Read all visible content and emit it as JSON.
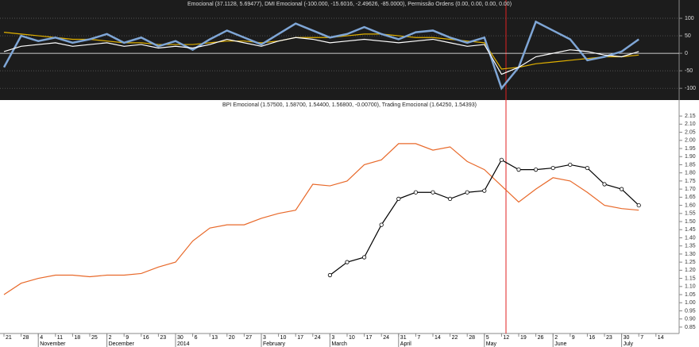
{
  "chart_data": [
    {
      "type": "line",
      "title": "Emocional (37.1128, 5.69477), DMI Emocional (-100.000, -15.6016, -2.49626, -85.0000), Permissão Ordens (0.00, 0.00, 0.00, 0.00)",
      "ylim": [
        -120,
        125
      ],
      "yticks": [
        100,
        50,
        0,
        -50,
        -100
      ],
      "grid": true,
      "series": [
        {
          "color": "#e0b000",
          "values": [
            60,
            55,
            50,
            45,
            40,
            40,
            35,
            30,
            30,
            25,
            25,
            25,
            30,
            35,
            35,
            30,
            35,
            45,
            45,
            45,
            50,
            55,
            55,
            50,
            45,
            45,
            40,
            35,
            30,
            -45,
            -40,
            -30,
            -25,
            -20,
            -15,
            -10,
            -10,
            -5,
            null
          ]
        },
        {
          "color": "#7fa6d6",
          "values": [
            -40,
            50,
            35,
            45,
            30,
            40,
            55,
            30,
            45,
            20,
            35,
            10,
            40,
            65,
            45,
            25,
            55,
            85,
            65,
            45,
            55,
            75,
            55,
            40,
            60,
            65,
            45,
            30,
            45,
            -100,
            -40,
            90,
            65,
            40,
            -20,
            -10,
            5,
            40,
            null
          ]
        },
        {
          "color": "#ffffff",
          "values": [
            5,
            20,
            25,
            30,
            20,
            25,
            30,
            20,
            25,
            15,
            20,
            15,
            25,
            40,
            30,
            20,
            35,
            45,
            40,
            30,
            35,
            40,
            35,
            30,
            35,
            40,
            30,
            20,
            25,
            -60,
            -40,
            -10,
            0,
            10,
            5,
            -5,
            -10,
            5,
            null
          ]
        }
      ]
    },
    {
      "type": "line",
      "title": "BPI Emocional (1.57500, 1.58700, 1.54400, 1.56800, -0.00700), Trading Emocional (1.64250, 1.54393)",
      "categories": [
        "21",
        "28",
        "4",
        "11",
        "18",
        "25",
        "2",
        "9",
        "16",
        "23",
        "30",
        "6",
        "13",
        "20",
        "27",
        "3",
        "10",
        "17",
        "24",
        "3",
        "10",
        "17",
        "24",
        "31",
        "7",
        "14",
        "22",
        "28",
        "5",
        "12",
        "19",
        "26",
        "2",
        "9",
        "16",
        "23",
        "30",
        "7",
        "14"
      ],
      "month_labels": [
        null,
        null,
        "November",
        null,
        null,
        null,
        "December",
        null,
        null,
        null,
        "2014",
        null,
        null,
        null,
        null,
        "February",
        null,
        null,
        null,
        "March",
        null,
        null,
        null,
        "April",
        null,
        null,
        null,
        null,
        "May",
        null,
        null,
        null,
        "June",
        null,
        null,
        null,
        "July",
        null,
        null
      ],
      "ylim": [
        0.83,
        2.18
      ],
      "yticks": [
        2.15,
        {
          "value": 2.1,
          "label": "2.10"
        },
        2.05,
        {
          "value": 2,
          "label": "2.00"
        },
        1.95,
        {
          "value": 1.9,
          "label": "1.90"
        },
        1.85,
        {
          "value": 1.8,
          "label": "1.80"
        },
        1.75,
        {
          "value": 1.7,
          "label": "1.70"
        },
        1.65,
        {
          "value": 1.6,
          "label": "1.60"
        },
        1.55,
        {
          "value": 1.5,
          "label": "1.50"
        },
        1.45,
        {
          "value": 1.4,
          "label": "1.40"
        },
        1.35,
        {
          "value": 1.3,
          "label": "1.30"
        },
        1.25,
        {
          "value": 1.2,
          "label": "1.20"
        },
        1.15,
        {
          "value": 1.1,
          "label": "1.10"
        },
        1.05,
        {
          "value": 1,
          "label": "1.00"
        },
        0.95,
        {
          "value": 0.9,
          "label": "0.90"
        },
        0.85
      ],
      "grid": false,
      "series": [
        {
          "color": "#e8692a",
          "values": [
            1.05,
            1.12,
            1.15,
            1.17,
            1.17,
            1.16,
            1.17,
            1.17,
            1.18,
            1.22,
            1.25,
            1.38,
            1.46,
            1.48,
            1.48,
            1.52,
            1.55,
            1.57,
            1.73,
            1.72,
            1.75,
            1.85,
            1.88,
            1.98,
            1.98,
            1.94,
            1.96,
            1.87,
            1.82,
            1.72,
            1.62,
            1.7,
            1.77,
            1.75,
            1.68,
            1.6,
            1.58,
            1.57,
            null
          ]
        },
        {
          "color": "#000000",
          "markers": true,
          "values": [
            null,
            null,
            null,
            null,
            null,
            null,
            null,
            null,
            null,
            null,
            null,
            null,
            null,
            null,
            null,
            null,
            null,
            null,
            null,
            1.17,
            1.25,
            1.28,
            1.48,
            1.64,
            1.68,
            1.68,
            1.64,
            1.68,
            1.69,
            1.88,
            1.82,
            1.82,
            1.83,
            1.85,
            1.83,
            1.73,
            1.7,
            1.6,
            null
          ]
        }
      ]
    }
  ]
}
